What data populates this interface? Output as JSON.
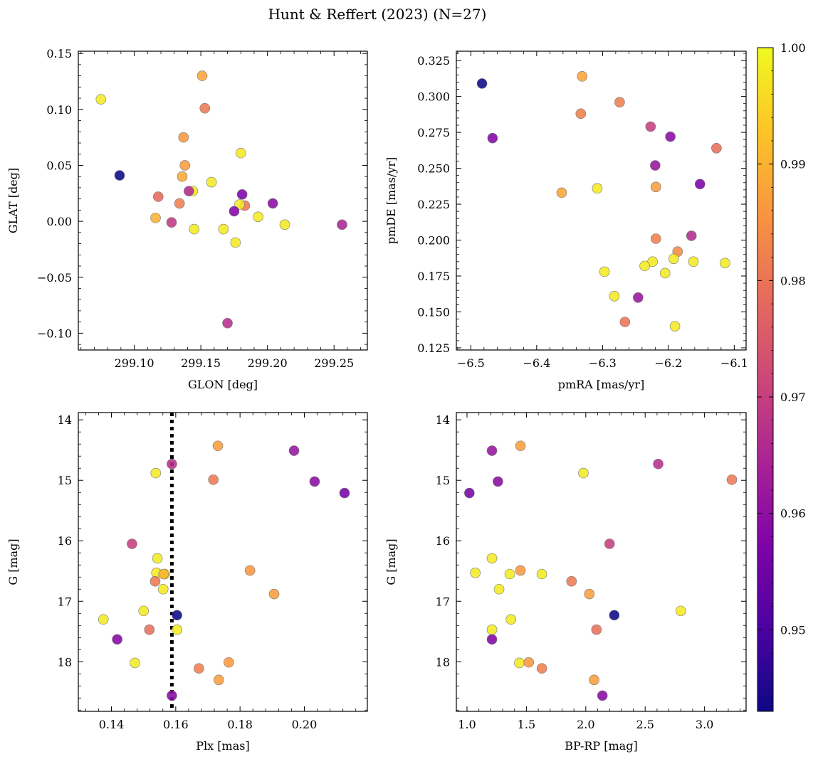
{
  "figure": {
    "title": "Hunt & Reffert (2023) (N=27)"
  },
  "colorbar": {
    "cmap": "plasma",
    "range": [
      0.943,
      1.0
    ],
    "ticks": [
      0.95,
      0.96,
      0.97,
      0.98,
      0.99,
      1.0
    ],
    "tick_labels": [
      "0.95",
      "0.96",
      "0.97",
      "0.98",
      "0.99",
      "1.00"
    ]
  },
  "chart_data": [
    {
      "type": "scatter",
      "id": "glon-glat",
      "xlabel": "GLON [deg]",
      "ylabel": "GLAT [deg]",
      "xlim": [
        299.058,
        299.275
      ],
      "ylim": [
        -0.115,
        0.152
      ],
      "xticks": [
        299.1,
        299.15,
        299.2,
        299.25
      ],
      "xtick_labels": [
        "299.10",
        "299.15",
        "299.20",
        "299.25"
      ],
      "yticks": [
        -0.1,
        -0.05,
        0.0,
        0.05,
        0.1,
        0.15
      ],
      "ytick_labels": [
        "−0.10",
        "−0.05",
        "0.00",
        "0.05",
        "0.10",
        "0.15"
      ],
      "x": [
        299.151,
        299.153,
        299.075,
        299.137,
        299.18,
        299.138,
        299.158,
        299.136,
        299.089,
        299.144,
        299.141,
        299.118,
        299.181,
        299.183,
        299.179,
        299.204,
        299.134,
        299.175,
        299.193,
        299.116,
        299.128,
        299.213,
        299.256,
        299.145,
        299.167,
        299.176,
        299.17
      ],
      "y": [
        0.13,
        0.101,
        0.109,
        0.075,
        0.061,
        0.05,
        0.035,
        0.04,
        0.041,
        0.027,
        0.027,
        0.022,
        0.024,
        0.014,
        0.015,
        0.016,
        0.016,
        0.009,
        0.004,
        0.003,
        -0.001,
        -0.003,
        -0.003,
        -0.007,
        -0.007,
        -0.019,
        -0.091
      ],
      "c": [
        0.988,
        0.981,
        0.998,
        0.986,
        0.998,
        0.987,
        0.998,
        0.989,
        0.943,
        0.998,
        0.966,
        0.978,
        0.957,
        0.981,
        0.998,
        0.959,
        0.982,
        0.958,
        0.998,
        0.99,
        0.969,
        0.998,
        0.965,
        0.998,
        0.998,
        0.998,
        0.967
      ]
    },
    {
      "type": "scatter",
      "id": "pmra-pmde",
      "xlabel": "pmRA [mas/yr]",
      "ylabel": "pmDE [mas/yr]",
      "xlim": [
        -6.522,
        -6.082
      ],
      "ylim": [
        0.1235,
        0.3315
      ],
      "xticks": [
        -6.5,
        -6.4,
        -6.3,
        -6.2,
        -6.1
      ],
      "xtick_labels": [
        "−6.5",
        "−6.4",
        "−6.3",
        "−6.2",
        "−6.1"
      ],
      "yticks": [
        0.125,
        0.15,
        0.175,
        0.2,
        0.225,
        0.25,
        0.275,
        0.3,
        0.325
      ],
      "ytick_labels": [
        "0.125",
        "0.150",
        "0.175",
        "0.200",
        "0.225",
        "0.250",
        "0.275",
        "0.300",
        "0.325"
      ],
      "x": [
        -6.483,
        -6.331,
        -6.333,
        -6.274,
        -6.467,
        -6.227,
        -6.197,
        -6.127,
        -6.22,
        -6.152,
        -6.219,
        -6.308,
        -6.362,
        -6.165,
        -6.219,
        -6.186,
        -6.192,
        -6.224,
        -6.162,
        -6.236,
        -6.114,
        -6.297,
        -6.205,
        -6.282,
        -6.246,
        -6.266,
        -6.19
      ],
      "y": [
        0.309,
        0.314,
        0.288,
        0.296,
        0.271,
        0.279,
        0.272,
        0.264,
        0.252,
        0.239,
        0.237,
        0.236,
        0.233,
        0.203,
        0.201,
        0.192,
        0.187,
        0.185,
        0.185,
        0.182,
        0.184,
        0.178,
        0.177,
        0.161,
        0.16,
        0.143,
        0.14
      ],
      "c": [
        0.943,
        0.988,
        0.982,
        0.982,
        0.958,
        0.97,
        0.959,
        0.979,
        0.961,
        0.957,
        0.987,
        0.998,
        0.988,
        0.966,
        0.982,
        0.984,
        0.998,
        0.998,
        0.998,
        0.998,
        0.998,
        0.998,
        0.998,
        0.998,
        0.961,
        0.98,
        0.998
      ]
    },
    {
      "type": "scatter",
      "id": "plx-g",
      "xlabel": "Plx [mas]",
      "ylabel": "G [mag]",
      "xlim": [
        0.1297,
        0.2196
      ],
      "ylim": [
        18.82,
        13.88
      ],
      "y_inverted": true,
      "xticks": [
        0.14,
        0.16,
        0.18,
        0.2
      ],
      "xtick_labels": [
        "0.14",
        "0.16",
        "0.18",
        "0.20"
      ],
      "yticks": [
        14,
        15,
        16,
        17,
        18
      ],
      "ytick_labels": [
        "14",
        "15",
        "16",
        "17",
        "18"
      ],
      "vline": {
        "x": 0.1588,
        "style": "dotted"
      },
      "x": [
        0.1731,
        0.1968,
        0.1588,
        0.1538,
        0.1717,
        0.2032,
        0.2125,
        0.1464,
        0.1543,
        0.1831,
        0.154,
        0.1566,
        0.1562,
        0.1536,
        0.1906,
        0.15,
        0.1604,
        0.1375,
        0.1518,
        0.1604,
        0.1418,
        0.1473,
        0.1765,
        0.1672,
        0.1734,
        0.1588,
        0.1561
      ],
      "y": [
        14.43,
        14.51,
        14.73,
        14.88,
        14.99,
        15.02,
        15.21,
        16.05,
        16.29,
        16.49,
        16.53,
        16.55,
        16.55,
        16.67,
        16.88,
        17.16,
        17.23,
        17.3,
        17.47,
        17.47,
        17.63,
        18.02,
        18.01,
        18.11,
        18.3,
        18.56,
        16.8
      ],
      "c": [
        0.987,
        0.961,
        0.967,
        0.998,
        0.981,
        0.959,
        0.956,
        0.97,
        0.998,
        0.986,
        0.998,
        0.998,
        0.99,
        0.981,
        0.987,
        0.998,
        0.943,
        0.998,
        0.979,
        0.998,
        0.958,
        0.998,
        0.986,
        0.982,
        0.987,
        0.959,
        0.998
      ]
    },
    {
      "type": "scatter",
      "id": "bprp-g",
      "xlabel": "BP-RP [mag]",
      "ylabel": "G [mag]",
      "xlim": [
        0.91,
        3.35
      ],
      "ylim": [
        18.82,
        13.88
      ],
      "y_inverted": true,
      "xticks": [
        1.0,
        1.5,
        2.0,
        2.5,
        3.0
      ],
      "xtick_labels": [
        "1.0",
        "1.5",
        "2.0",
        "2.5",
        "3.0"
      ],
      "yticks": [
        14,
        15,
        16,
        17,
        18
      ],
      "ytick_labels": [
        "14",
        "15",
        "16",
        "17",
        "18"
      ],
      "x": [
        1.45,
        1.21,
        2.61,
        1.98,
        3.23,
        1.26,
        1.02,
        2.2,
        1.21,
        1.45,
        1.07,
        1.36,
        1.63,
        1.88,
        2.03,
        1.27,
        2.24,
        1.37,
        1.21,
        2.09,
        1.21,
        1.44,
        1.52,
        1.63,
        2.07,
        2.14,
        2.8
      ],
      "y": [
        14.43,
        14.51,
        14.73,
        14.88,
        14.99,
        15.02,
        15.21,
        16.05,
        16.29,
        16.49,
        16.53,
        16.55,
        16.55,
        16.67,
        16.88,
        16.8,
        17.23,
        17.3,
        17.47,
        17.47,
        17.63,
        18.02,
        18.01,
        18.11,
        18.3,
        18.56,
        17.16
      ],
      "c": [
        0.987,
        0.961,
        0.967,
        0.998,
        0.981,
        0.959,
        0.956,
        0.97,
        0.998,
        0.986,
        0.998,
        0.998,
        0.998,
        0.981,
        0.987,
        0.998,
        0.943,
        0.998,
        0.998,
        0.979,
        0.958,
        0.998,
        0.986,
        0.982,
        0.987,
        0.959,
        0.998
      ]
    }
  ]
}
